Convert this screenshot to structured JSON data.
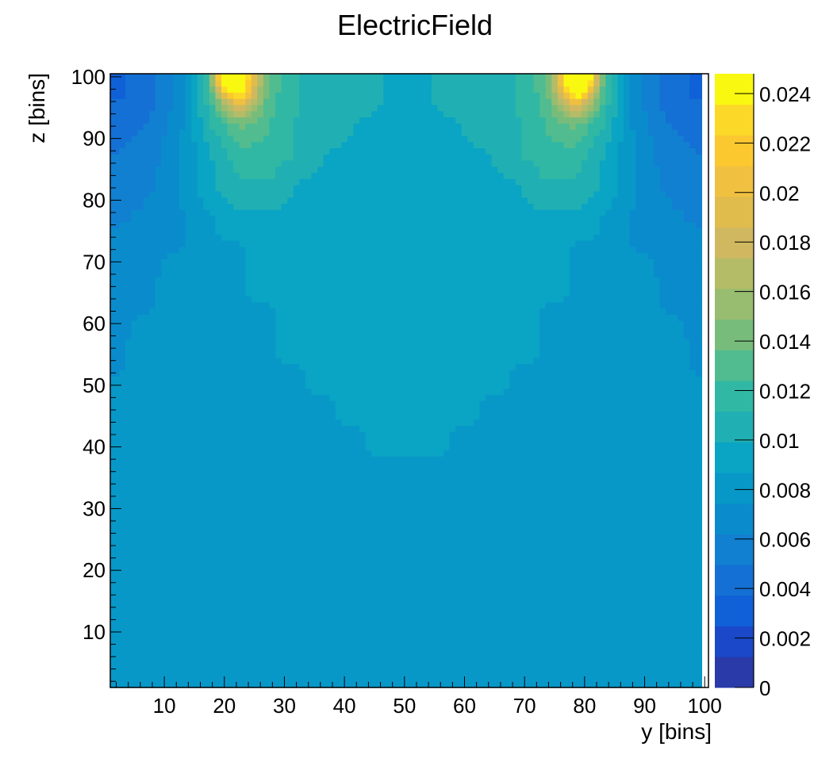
{
  "chart_data": {
    "type": "heatmap",
    "title": "ElectricField",
    "xlabel": "y [bins]",
    "ylabel": "z [bins]",
    "xlim": [
      1,
      100.5
    ],
    "ylim": [
      1,
      100.5
    ],
    "x_ticks": [
      "10",
      "20",
      "30",
      "40",
      "50",
      "60",
      "70",
      "80",
      "90",
      "100"
    ],
    "y_ticks": [
      "10",
      "20",
      "30",
      "40",
      "50",
      "60",
      "70",
      "80",
      "90",
      "100"
    ],
    "colorbar": {
      "range": [
        0,
        0.0248
      ],
      "ticks": [
        "0",
        "0.002",
        "0.004",
        "0.006",
        "0.008",
        "0.01",
        "0.012",
        "0.014",
        "0.016",
        "0.018",
        "0.02",
        "0.022",
        "0.024"
      ],
      "palette": [
        "#2a3aa8",
        "#1a48c8",
        "#1060d8",
        "#1470d4",
        "#1280d0",
        "#0a8ccc",
        "#0898c8",
        "#0aa4c4",
        "#20b0b4",
        "#30b8a4",
        "#50bc90",
        "#78bc7c",
        "#98bc70",
        "#b4bc68",
        "#d0b860",
        "#e0bc4c",
        "#f0c040",
        "#fcc830",
        "#fcd828",
        "#f8f810"
      ]
    },
    "value_unit_note": "grid values in units of 0.001; left half of symmetric field (y centers 2.5..47.5 step 5), rows z centers 97.5 down to 2.5 step 5",
    "grid_y_centers": [
      2.5,
      7.5,
      12.5,
      17.5,
      22.5,
      27.5,
      32.5,
      37.5,
      42.5,
      47.5
    ],
    "grid_z_centers": [
      97.5,
      92.5,
      87.5,
      82.5,
      77.5,
      72.5,
      67.5,
      62.5,
      57.5,
      52.5,
      47.5,
      42.5,
      37.5,
      32.5,
      27.5,
      22.5,
      17.5,
      12.5,
      7.5,
      2.5
    ],
    "grid_values": [
      [
        3.5,
        4.5,
        6.5,
        12,
        23,
        13,
        11,
        11,
        11,
        9.7
      ],
      [
        4.5,
        5,
        7,
        11,
        14,
        12.5,
        11,
        11,
        9.7,
        9.7
      ],
      [
        5,
        5.5,
        7.3,
        9.7,
        12,
        12,
        11,
        9.7,
        9.7,
        9.7
      ],
      [
        5.5,
        6,
        7.3,
        9.7,
        11,
        11,
        9.7,
        9.7,
        9.7,
        9.7
      ],
      [
        6,
        6.5,
        7.3,
        8.5,
        9.7,
        9.7,
        9.7,
        9.7,
        9.7,
        9.7
      ],
      [
        6.5,
        7,
        7.3,
        8.5,
        8.5,
        9.7,
        9.7,
        9.7,
        9.7,
        9.7
      ],
      [
        7,
        7,
        8.5,
        8.5,
        8.5,
        9.7,
        9.7,
        9.7,
        9.7,
        9.7
      ],
      [
        7,
        7.3,
        8.5,
        8.5,
        8.5,
        8.5,
        9.7,
        9.7,
        9.7,
        9.7
      ],
      [
        7,
        8.5,
        8.5,
        8.5,
        8.5,
        8.5,
        9.7,
        9.7,
        9.7,
        9.7
      ],
      [
        7.3,
        8.5,
        8.5,
        8.5,
        8.5,
        8.5,
        8.5,
        9.7,
        9.7,
        9.7
      ],
      [
        8.5,
        8.5,
        8.5,
        8.5,
        8.5,
        8.5,
        8.5,
        8.5,
        9.7,
        9.7
      ],
      [
        8.5,
        8.5,
        8.5,
        8.5,
        8.5,
        8.5,
        8.5,
        8.5,
        8.5,
        9.7
      ],
      [
        8.5,
        8.5,
        8.5,
        8.5,
        8.5,
        8.5,
        8.5,
        8.5,
        8.5,
        8.5
      ],
      [
        8.5,
        8.5,
        8.5,
        8.5,
        8.5,
        8.5,
        8.5,
        8.5,
        8.5,
        8.5
      ],
      [
        8.5,
        8.5,
        8.5,
        8.5,
        8.5,
        8.5,
        8.5,
        8.5,
        8.5,
        8.5
      ],
      [
        8.5,
        8.5,
        8.5,
        8.5,
        8.5,
        8.5,
        8.5,
        8.5,
        8.5,
        8.5
      ],
      [
        8.5,
        8.5,
        8.5,
        8.5,
        8.5,
        8.5,
        8.5,
        8.5,
        8.5,
        8.5
      ],
      [
        8.5,
        8.5,
        8.5,
        8.5,
        8.5,
        8.5,
        8.5,
        8.5,
        8.5,
        8.5
      ],
      [
        8.5,
        8.5,
        8.5,
        8.5,
        8.5,
        8.5,
        8.5,
        8.5,
        8.5,
        8.5
      ],
      [
        8.5,
        8.5,
        8.5,
        8.5,
        8.5,
        8.5,
        8.5,
        8.5,
        8.5,
        8.5
      ]
    ],
    "peaks": [
      {
        "y": 21,
        "z": 100
      },
      {
        "y": 79,
        "z": 100
      }
    ],
    "grid": false,
    "legend": "colorbar-right"
  }
}
